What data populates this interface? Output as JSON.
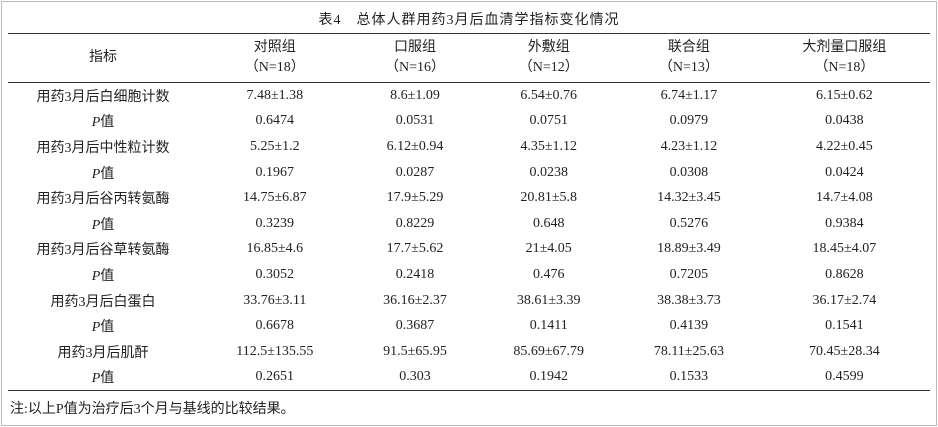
{
  "table": {
    "title": "表4　总体人群用药3月后血清学指标变化情况",
    "corner": "指标",
    "groups": [
      {
        "name": "对照组",
        "n": "（N=18）"
      },
      {
        "name": "口服组",
        "n": "（N=16）"
      },
      {
        "name": "外敷组",
        "n": "（N=12）"
      },
      {
        "name": "联合组",
        "n": "（N=13）"
      },
      {
        "name": "大剂量口服组",
        "n": "（N=18）"
      }
    ],
    "rows": [
      [
        "用药3月后白细胞计数",
        "7.48±1.38",
        "8.6±1.09",
        "6.54±0.76",
        "6.74±1.17",
        "6.15±0.62"
      ],
      [
        "P值",
        "0.6474",
        "0.0531",
        "0.0751",
        "0.0979",
        "0.0438"
      ],
      [
        "用药3月后中性粒计数",
        "5.25±1.2",
        "6.12±0.94",
        "4.35±1.12",
        "4.23±1.12",
        "4.22±0.45"
      ],
      [
        "P值",
        "0.1967",
        "0.0287",
        "0.0238",
        "0.0308",
        "0.0424"
      ],
      [
        "用药3月后谷丙转氨酶",
        "14.75±6.87",
        "17.9±5.29",
        "20.81±5.8",
        "14.32±3.45",
        "14.7±4.08"
      ],
      [
        "P值",
        "0.3239",
        "0.8229",
        "0.648",
        "0.5276",
        "0.9384"
      ],
      [
        "用药3月后谷草转氨酶",
        "16.85±4.6",
        "17.7±5.62",
        "21±4.05",
        "18.89±3.49",
        "18.45±4.07"
      ],
      [
        "P值",
        "0.3052",
        "0.2418",
        "0.476",
        "0.7205",
        "0.8628"
      ],
      [
        "用药3月后白蛋白",
        "33.76±3.11",
        "36.16±2.37",
        "38.61±3.39",
        "38.38±3.73",
        "36.17±2.74"
      ],
      [
        "P值",
        "0.6678",
        "0.3687",
        "0.1411",
        "0.4139",
        "0.1541"
      ],
      [
        "用药3月后肌酐",
        "112.5±135.55",
        "91.5±65.95",
        "85.69±67.79",
        "78.11±25.63",
        "70.45±28.34"
      ],
      [
        "P值",
        "0.2651",
        "0.303",
        "0.1942",
        "0.1533",
        "0.4599"
      ]
    ],
    "note": "注:以上P值为治疗后3个月与基线的比较结果。"
  }
}
